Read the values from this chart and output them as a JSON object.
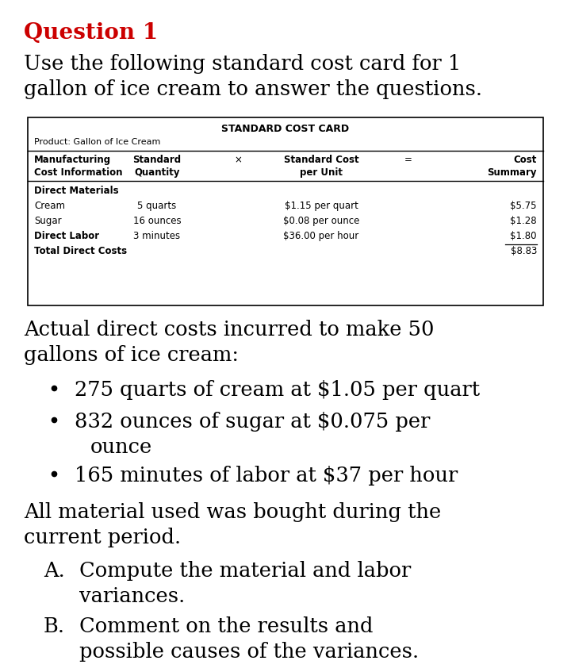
{
  "title": "Question 1",
  "title_color": "#cc0000",
  "intro_line1": "Use the following standard cost card for 1",
  "intro_line2": "gallon of ice cream to answer the questions.",
  "table_title": "STANDARD COST CARD",
  "product_label": "Product: Gallon of Ice Cream",
  "section_label": "Direct Materials",
  "rows": [
    {
      "label": "Cream",
      "bold": false,
      "quantity": "5 quarts",
      "cost_per": "$1.15 per quart",
      "summary": "$5.75"
    },
    {
      "label": "Sugar",
      "bold": false,
      "quantity": "16 ounces",
      "cost_per": "$0.08 per ounce",
      "summary": "$1.28"
    },
    {
      "label": "Direct Labor",
      "bold": true,
      "quantity": "3 minutes",
      "cost_per": "$36.00 per hour",
      "summary": "$1.80"
    },
    {
      "label": "Total Direct Costs",
      "bold": true,
      "quantity": "",
      "cost_per": "",
      "summary": "$8.83"
    }
  ],
  "actual_line1": "Actual direct costs incurred to make 50",
  "actual_line2": "gallons of ice cream:",
  "bullet1": "275 quarts of cream at $1.05 per quart",
  "bullet2a": "832 ounces of sugar at $0.075 per",
  "bullet2b": "ounce",
  "bullet3": "165 minutes of labor at $37 per hour",
  "extra_line1": "All material used was bought during the",
  "extra_line2": "current period.",
  "partA_label": "A.",
  "partA_line1": "Compute the material and labor",
  "partA_line2": "variances.",
  "partB_label": "B.",
  "partB_line1": "Comment on the results and",
  "partB_line2": "possible causes of the variances.",
  "bg_color": "#ffffff",
  "text_color": "#000000",
  "border_color": "#000000"
}
